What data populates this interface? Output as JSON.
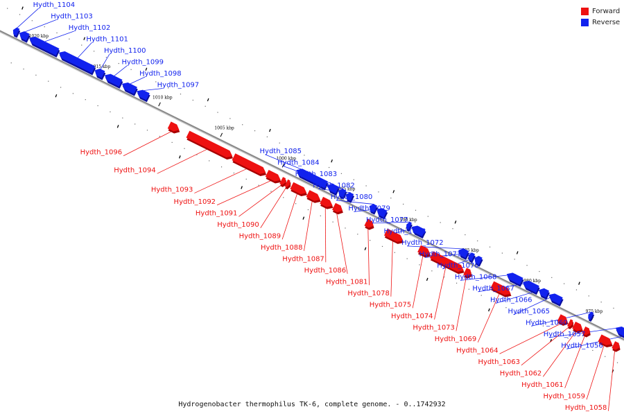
{
  "colors": {
    "forward": "#ee1111",
    "reverse": "#1122ee",
    "forward_dark": "#a80000",
    "reverse_dark": "#0a0fa0",
    "axis": "#888888"
  },
  "legend": [
    {
      "label": "Forward",
      "color": "#ee1111"
    },
    {
      "label": "Reverse",
      "color": "#1122ee"
    }
  ],
  "caption": "Hydrogenobacter thermophilus TK-6, complete genome. - 0..1742932",
  "axis": {
    "start_kbp": 1023,
    "end_kbp": 972,
    "tick_labels": [
      "1020 kbp",
      "1015 kbp",
      "1010 kbp",
      "1005 kbp",
      "1000 kbp",
      "995 kbp",
      "990 kbp",
      "985 kbp",
      "980 kbp",
      "975 kbp"
    ],
    "tick_kbp": [
      1020,
      1015,
      1010,
      1005,
      1000,
      995,
      990,
      985,
      980,
      975
    ]
  },
  "genes": [
    {
      "id": "Hydth_1104",
      "strand": "reverse",
      "from_kbp": 1021.9,
      "to_kbp": 1021.5
    },
    {
      "id": "Hydth_1103",
      "strand": "reverse",
      "from_kbp": 1021.4,
      "to_kbp": 1020.7
    },
    {
      "id": "Hydth_1102",
      "strand": "reverse",
      "from_kbp": 1020.6,
      "to_kbp": 1018.3
    },
    {
      "id": "Hydth_1101",
      "strand": "reverse",
      "from_kbp": 1018.2,
      "to_kbp": 1015.4
    },
    {
      "id": "Hydth_1100",
      "strand": "reverse",
      "from_kbp": 1015.3,
      "to_kbp": 1014.6
    },
    {
      "id": "Hydth_1099",
      "strand": "reverse",
      "from_kbp": 1014.5,
      "to_kbp": 1013.2
    },
    {
      "id": "Hydth_1098",
      "strand": "reverse",
      "from_kbp": 1013.1,
      "to_kbp": 1012.0
    },
    {
      "id": "Hydth_1097",
      "strand": "reverse",
      "from_kbp": 1011.9,
      "to_kbp": 1011.0
    },
    {
      "id": "Hydth_1096",
      "strand": "forward",
      "from_kbp": 1008.7,
      "to_kbp": 1007.9
    },
    {
      "id": "Hydth_1094",
      "strand": "forward",
      "from_kbp": 1007.2,
      "to_kbp": 1003.6
    },
    {
      "id": "Hydth_1093",
      "strand": "forward",
      "from_kbp": 1003.5,
      "to_kbp": 1000.9
    },
    {
      "id": "Hydth_1092",
      "strand": "forward",
      "from_kbp": 1000.8,
      "to_kbp": 999.7
    },
    {
      "id": "Hydth_1091",
      "strand": "forward",
      "from_kbp": 999.65,
      "to_kbp": 999.3
    },
    {
      "id": "Hydth_1090",
      "strand": "forward",
      "from_kbp": 999.25,
      "to_kbp": 998.95
    },
    {
      "id": "Hydth_1089",
      "strand": "forward",
      "from_kbp": 998.8,
      "to_kbp": 997.6
    },
    {
      "id": "Hydth_1088",
      "strand": "forward",
      "from_kbp": 997.5,
      "to_kbp": 996.5
    },
    {
      "id": "Hydth_1087",
      "strand": "forward",
      "from_kbp": 996.4,
      "to_kbp": 995.5
    },
    {
      "id": "Hydth_1086",
      "strand": "forward",
      "from_kbp": 995.4,
      "to_kbp": 994.7
    },
    {
      "id": "Hydth_1085",
      "strand": "reverse",
      "from_kbp": 999.0,
      "to_kbp": 996.6
    },
    {
      "id": "Hydth_1084",
      "strand": "reverse",
      "from_kbp": 996.5,
      "to_kbp": 995.7
    },
    {
      "id": "Hydth_1083",
      "strand": "reverse",
      "from_kbp": 995.6,
      "to_kbp": 995.1
    },
    {
      "id": "Hydth_1082",
      "strand": "reverse",
      "from_kbp": 995.0,
      "to_kbp": 994.5
    },
    {
      "id": "Hydth_1081",
      "strand": "forward",
      "from_kbp": 992.8,
      "to_kbp": 992.2
    },
    {
      "id": "Hydth_1080",
      "strand": "reverse",
      "from_kbp": 993.1,
      "to_kbp": 992.6
    },
    {
      "id": "Hydth_1079",
      "strand": "reverse",
      "from_kbp": 992.5,
      "to_kbp": 991.8
    },
    {
      "id": "Hydth_1078",
      "strand": "forward",
      "from_kbp": 991.2,
      "to_kbp": 989.8
    },
    {
      "id": "Hydth_1077",
      "strand": "reverse",
      "from_kbp": 990.1,
      "to_kbp": 989.8
    },
    {
      "id": "Hydth_1076",
      "strand": "reverse",
      "from_kbp": 989.7,
      "to_kbp": 988.7
    },
    {
      "id": "Hydth_1075",
      "strand": "forward",
      "from_kbp": 988.5,
      "to_kbp": 987.6
    },
    {
      "id": "Hydth_1074",
      "strand": "forward",
      "from_kbp": 987.5,
      "to_kbp": 984.9
    },
    {
      "id": "Hydth_1073",
      "strand": "forward",
      "from_kbp": 984.8,
      "to_kbp": 984.3
    },
    {
      "id": "Hydth_1072",
      "strand": "reverse",
      "from_kbp": 985.9,
      "to_kbp": 985.2
    },
    {
      "id": "Hydth_1071",
      "strand": "reverse",
      "from_kbp": 985.1,
      "to_kbp": 984.7
    },
    {
      "id": "Hydth_1070",
      "strand": "reverse",
      "from_kbp": 984.6,
      "to_kbp": 984.1
    },
    {
      "id": "Hydth_1069",
      "strand": "forward",
      "from_kbp": 982.6,
      "to_kbp": 981.1
    },
    {
      "id": "Hydth_1068",
      "strand": "reverse",
      "from_kbp": 982.0,
      "to_kbp": 980.8
    },
    {
      "id": "Hydth_1067",
      "strand": "reverse",
      "from_kbp": 980.7,
      "to_kbp": 979.5
    },
    {
      "id": "Hydth_1066",
      "strand": "reverse",
      "from_kbp": 979.4,
      "to_kbp": 978.7
    },
    {
      "id": "Hydth_1065",
      "strand": "reverse",
      "from_kbp": 978.6,
      "to_kbp": 977.6
    },
    {
      "id": "Hydth_1064",
      "strand": "forward",
      "from_kbp": 977.2,
      "to_kbp": 976.5
    },
    {
      "id": "Hydth_1063",
      "strand": "forward",
      "from_kbp": 976.4,
      "to_kbp": 976.1
    },
    {
      "id": "Hydth_1062",
      "strand": "forward",
      "from_kbp": 976.0,
      "to_kbp": 975.3
    },
    {
      "id": "Hydth_1061",
      "strand": "forward",
      "from_kbp": 975.2,
      "to_kbp": 974.7
    },
    {
      "id": "Hydth_1060",
      "strand": "reverse",
      "from_kbp": 975.4,
      "to_kbp": 975.1
    },
    {
      "id": "Hydth_1059",
      "strand": "forward",
      "from_kbp": 973.9,
      "to_kbp": 972.9
    },
    {
      "id": "Hydth_1058",
      "strand": "forward",
      "from_kbp": 972.8,
      "to_kbp": 972.3
    },
    {
      "id": "Hydth_1057",
      "strand": "reverse",
      "from_kbp": 973.2,
      "to_kbp": 972.3
    },
    {
      "id": "Hydth_1056",
      "strand": "reverse",
      "from_kbp": 972.2,
      "to_kbp": 971.3
    }
  ]
}
